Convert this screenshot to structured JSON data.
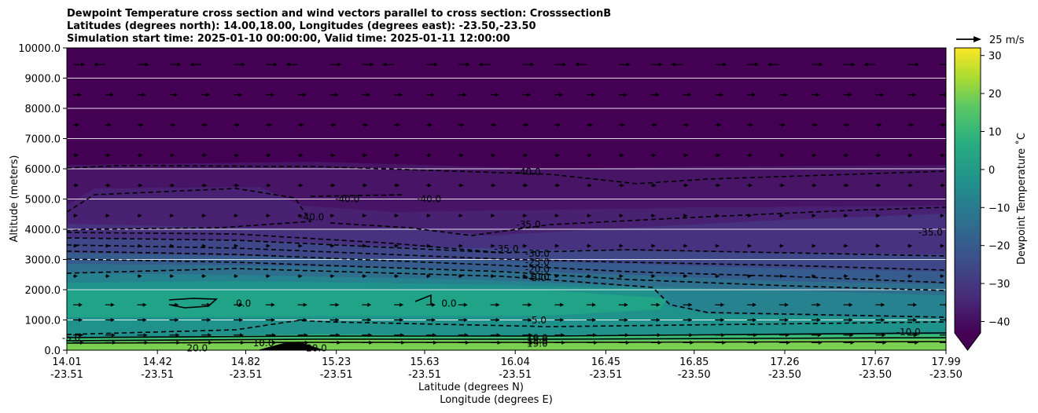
{
  "chart_data": {
    "type": "contour",
    "title_lines": [
      "Dewpoint Temperature cross section and wind vectors parallel to cross section: CrosssectionB",
      "Latitudes (degrees north): 14.00,18.00, Longitudes (degrees east): -23.50,-23.50",
      "Simulation start time: 2025-01-10 00:00:00, Valid time: 2025-01-11 12:00:00"
    ],
    "ylabel": "Altitude (meters)",
    "xlabel_lines": [
      "Latitude (degrees N)",
      "Longitude (degrees E)"
    ],
    "ylim": [
      0,
      10000
    ],
    "yticks": [
      "0.0",
      "1000.0",
      "2000.0",
      "3000.0",
      "4000.0",
      "5000.0",
      "6000.0",
      "7000.0",
      "8000.0",
      "9000.0",
      "10000.0"
    ],
    "xlim": [
      14.01,
      17.99
    ],
    "xticks": [
      {
        "lat": "14.01",
        "lon": "-23.51"
      },
      {
        "lat": "14.42",
        "lon": "-23.51"
      },
      {
        "lat": "14.82",
        "lon": "-23.51"
      },
      {
        "lat": "15.23",
        "lon": "-23.51"
      },
      {
        "lat": "15.63",
        "lon": "-23.51"
      },
      {
        "lat": "16.04",
        "lon": "-23.51"
      },
      {
        "lat": "16.45",
        "lon": "-23.51"
      },
      {
        "lat": "16.85",
        "lon": "-23.50"
      },
      {
        "lat": "17.26",
        "lon": "-23.50"
      },
      {
        "lat": "17.67",
        "lon": "-23.50"
      },
      {
        "lat": "17.99",
        "lon": "-23.50"
      }
    ],
    "colorbar": {
      "label": "Dewpoint Temperature ˚C",
      "range": [
        -43,
        32
      ],
      "ticks": [
        "30",
        "20",
        "10",
        "0",
        "−10",
        "−20",
        "−30",
        "−40"
      ],
      "extend": "min"
    },
    "quiver_key": "25 m/s",
    "grid": "horizontal",
    "contour_labels": [
      {
        "text": "-40.0",
        "lat": 16.1,
        "alt": 5900
      },
      {
        "text": "-40.0",
        "lat": 15.28,
        "alt": 5000
      },
      {
        "text": "-40.0",
        "lat": 15.65,
        "alt": 5000
      },
      {
        "text": "-40.0",
        "lat": 15.12,
        "alt": 4400
      },
      {
        "text": "-35.0",
        "lat": 16.1,
        "alt": 4150
      },
      {
        "text": "-35.0",
        "lat": 17.92,
        "alt": 3900
      },
      {
        "text": "-35.0",
        "lat": 16.0,
        "alt": 3350
      },
      {
        "text": "-30.0",
        "lat": 16.14,
        "alt": 3200
      },
      {
        "text": "-25.0",
        "lat": 16.14,
        "alt": 2910
      },
      {
        "text": "-20.0",
        "lat": 16.14,
        "alt": 2680
      },
      {
        "text": "-10.0",
        "lat": 16.14,
        "alt": 2430
      },
      {
        "text": "-5.0",
        "lat": 16.14,
        "alt": 2390
      },
      {
        "text": "0.0",
        "lat": 14.81,
        "alt": 1550
      },
      {
        "text": "0.0",
        "lat": 15.74,
        "alt": 1550
      },
      {
        "text": "-5.0",
        "lat": 16.14,
        "alt": 990
      },
      {
        "text": "-10.0",
        "lat": 17.82,
        "alt": 600
      },
      {
        "text": "-5.0",
        "lat": 14.03,
        "alt": 400
      },
      {
        "text": "10.0",
        "lat": 16.14,
        "alt": 400
      },
      {
        "text": "15.0",
        "lat": 16.14,
        "alt": 300
      },
      {
        "text": "19.0",
        "lat": 16.14,
        "alt": 220
      },
      {
        "text": "10.0",
        "lat": 14.9,
        "alt": 230
      },
      {
        "text": "20.0",
        "lat": 14.6,
        "alt": 60
      },
      {
        "text": "20.0",
        "lat": 15.14,
        "alt": 60
      }
    ],
    "colors": {
      "colormap": "viridis",
      "grid": "#ffffff",
      "contour": "#000000"
    }
  }
}
